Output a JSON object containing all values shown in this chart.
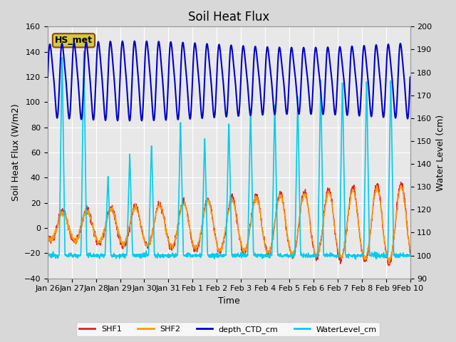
{
  "title": "Soil Heat Flux",
  "xlabel": "Time",
  "ylabel_left": "Soil Heat Flux (W/m2)",
  "ylabel_right": "Water Level (cm)",
  "ylim_left": [
    -40,
    160
  ],
  "ylim_right": [
    90,
    200
  ],
  "background_color": "#d8d8d8",
  "plot_bg_color": "#e8e8e8",
  "xtick_labels": [
    "Jan 26",
    "Jan 27",
    "Jan 28",
    "Jan 29",
    "Jan 30",
    "Jan 31",
    "Feb 1",
    "Feb 2",
    "Feb 3",
    "Feb 4",
    "Feb 5",
    "Feb 6",
    "Feb 7",
    "Feb 8",
    "Feb 9",
    "Feb 10"
  ],
  "annotation_text": "HS_met",
  "annotation_bg": "#d4c840",
  "annotation_border": "#8B4513",
  "line_colors": {
    "SHF1": "#dd2222",
    "SHF2": "#ff9900",
    "depth_CTD_cm": "#0000cc",
    "WaterLevel_cm": "#00ccee"
  },
  "line_widths": {
    "SHF1": 1.0,
    "SHF2": 1.0,
    "depth_CTD_cm": 1.5,
    "WaterLevel_cm": 1.2
  }
}
